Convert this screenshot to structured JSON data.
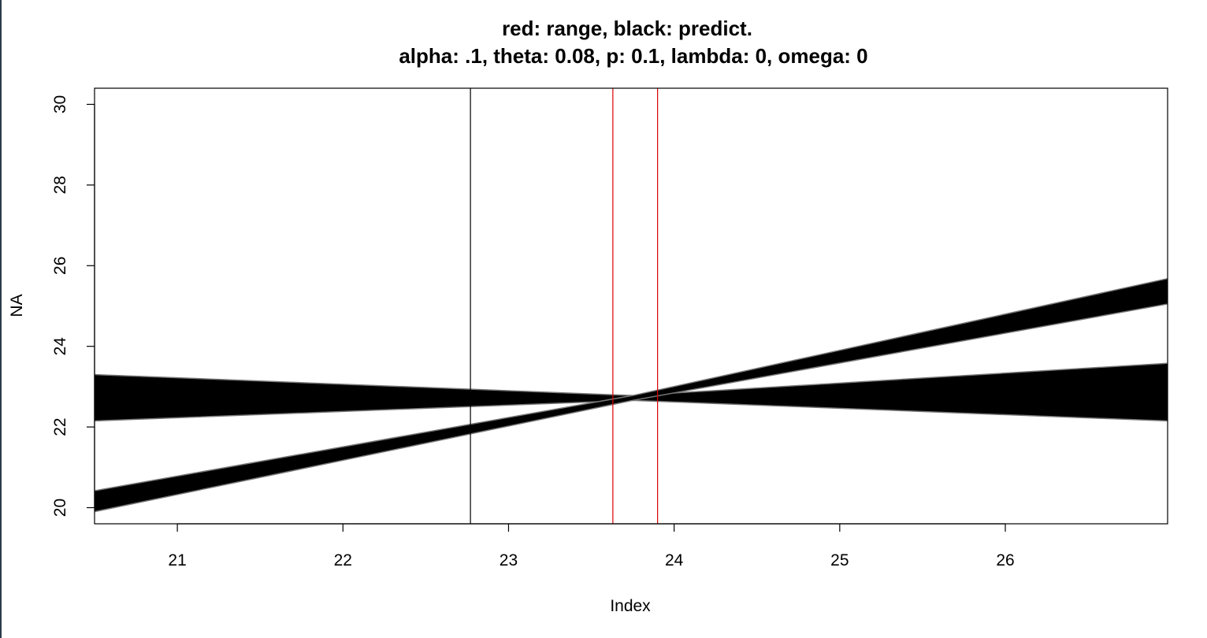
{
  "chart_data": {
    "type": "line",
    "title": "red: range, black: predict.",
    "subtitle": "alpha: .1, theta: 0.08, p: 0.1, lambda: 0, omega: 0",
    "xlabel": "Index",
    "ylabel": "NA",
    "xlim": [
      20.5,
      26.98
    ],
    "ylim": [
      19.6,
      30.4
    ],
    "x_ticks": [
      21,
      22,
      23,
      24,
      25,
      26
    ],
    "y_ticks": [
      20,
      22,
      24,
      26,
      28,
      30
    ],
    "grid": false,
    "colors": {
      "range": "#dd0000",
      "predict": "#000000",
      "band_edge": "#777777"
    },
    "vlines": {
      "predict": [
        22.77
      ],
      "range": [
        23.63,
        23.9
      ]
    },
    "bands": [
      {
        "x": [
          20.5,
          23.75,
          26.98
        ],
        "upper": [
          23.3,
          22.78,
          23.58
        ],
        "lower": [
          22.15,
          22.66,
          22.15
        ]
      },
      {
        "x": [
          20.5,
          23.75,
          26.98
        ],
        "upper": [
          20.42,
          22.78,
          25.68
        ],
        "lower": [
          19.9,
          22.66,
          25.05
        ]
      }
    ]
  }
}
